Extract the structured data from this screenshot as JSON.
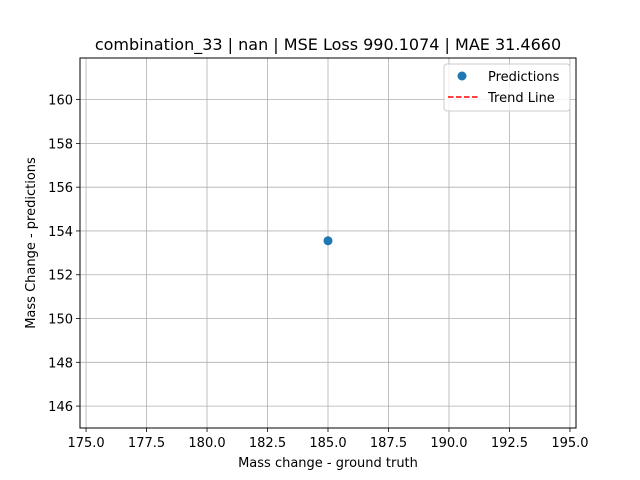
{
  "chart_data": {
    "type": "scatter",
    "title": "combination_33 | nan | MSE Loss 990.1074 | MAE 31.4660",
    "xlabel": "Mass change - ground truth",
    "ylabel": "Mass Change - predictions",
    "xlim": [
      174.75,
      195.25
    ],
    "ylim": [
      145.0,
      161.9
    ],
    "xticks": [
      175.0,
      177.5,
      180.0,
      182.5,
      185.0,
      187.5,
      190.0,
      192.5,
      195.0
    ],
    "xtick_labels": [
      "175.0",
      "177.5",
      "180.0",
      "182.5",
      "185.0",
      "187.5",
      "190.0",
      "192.5",
      "195.0"
    ],
    "yticks": [
      146,
      148,
      150,
      152,
      154,
      156,
      158,
      160
    ],
    "ytick_labels": [
      "146",
      "148",
      "150",
      "152",
      "154",
      "156",
      "158",
      "160"
    ],
    "grid": true,
    "legend_position": "top-right",
    "series": [
      {
        "name": "Predictions",
        "kind": "scatter",
        "color": "#1f77b4",
        "points": [
          {
            "x": 185.0,
            "y": 153.55
          }
        ]
      },
      {
        "name": "Trend Line",
        "kind": "line",
        "style": "dashed",
        "color": "#ff0000",
        "points": []
      }
    ]
  }
}
